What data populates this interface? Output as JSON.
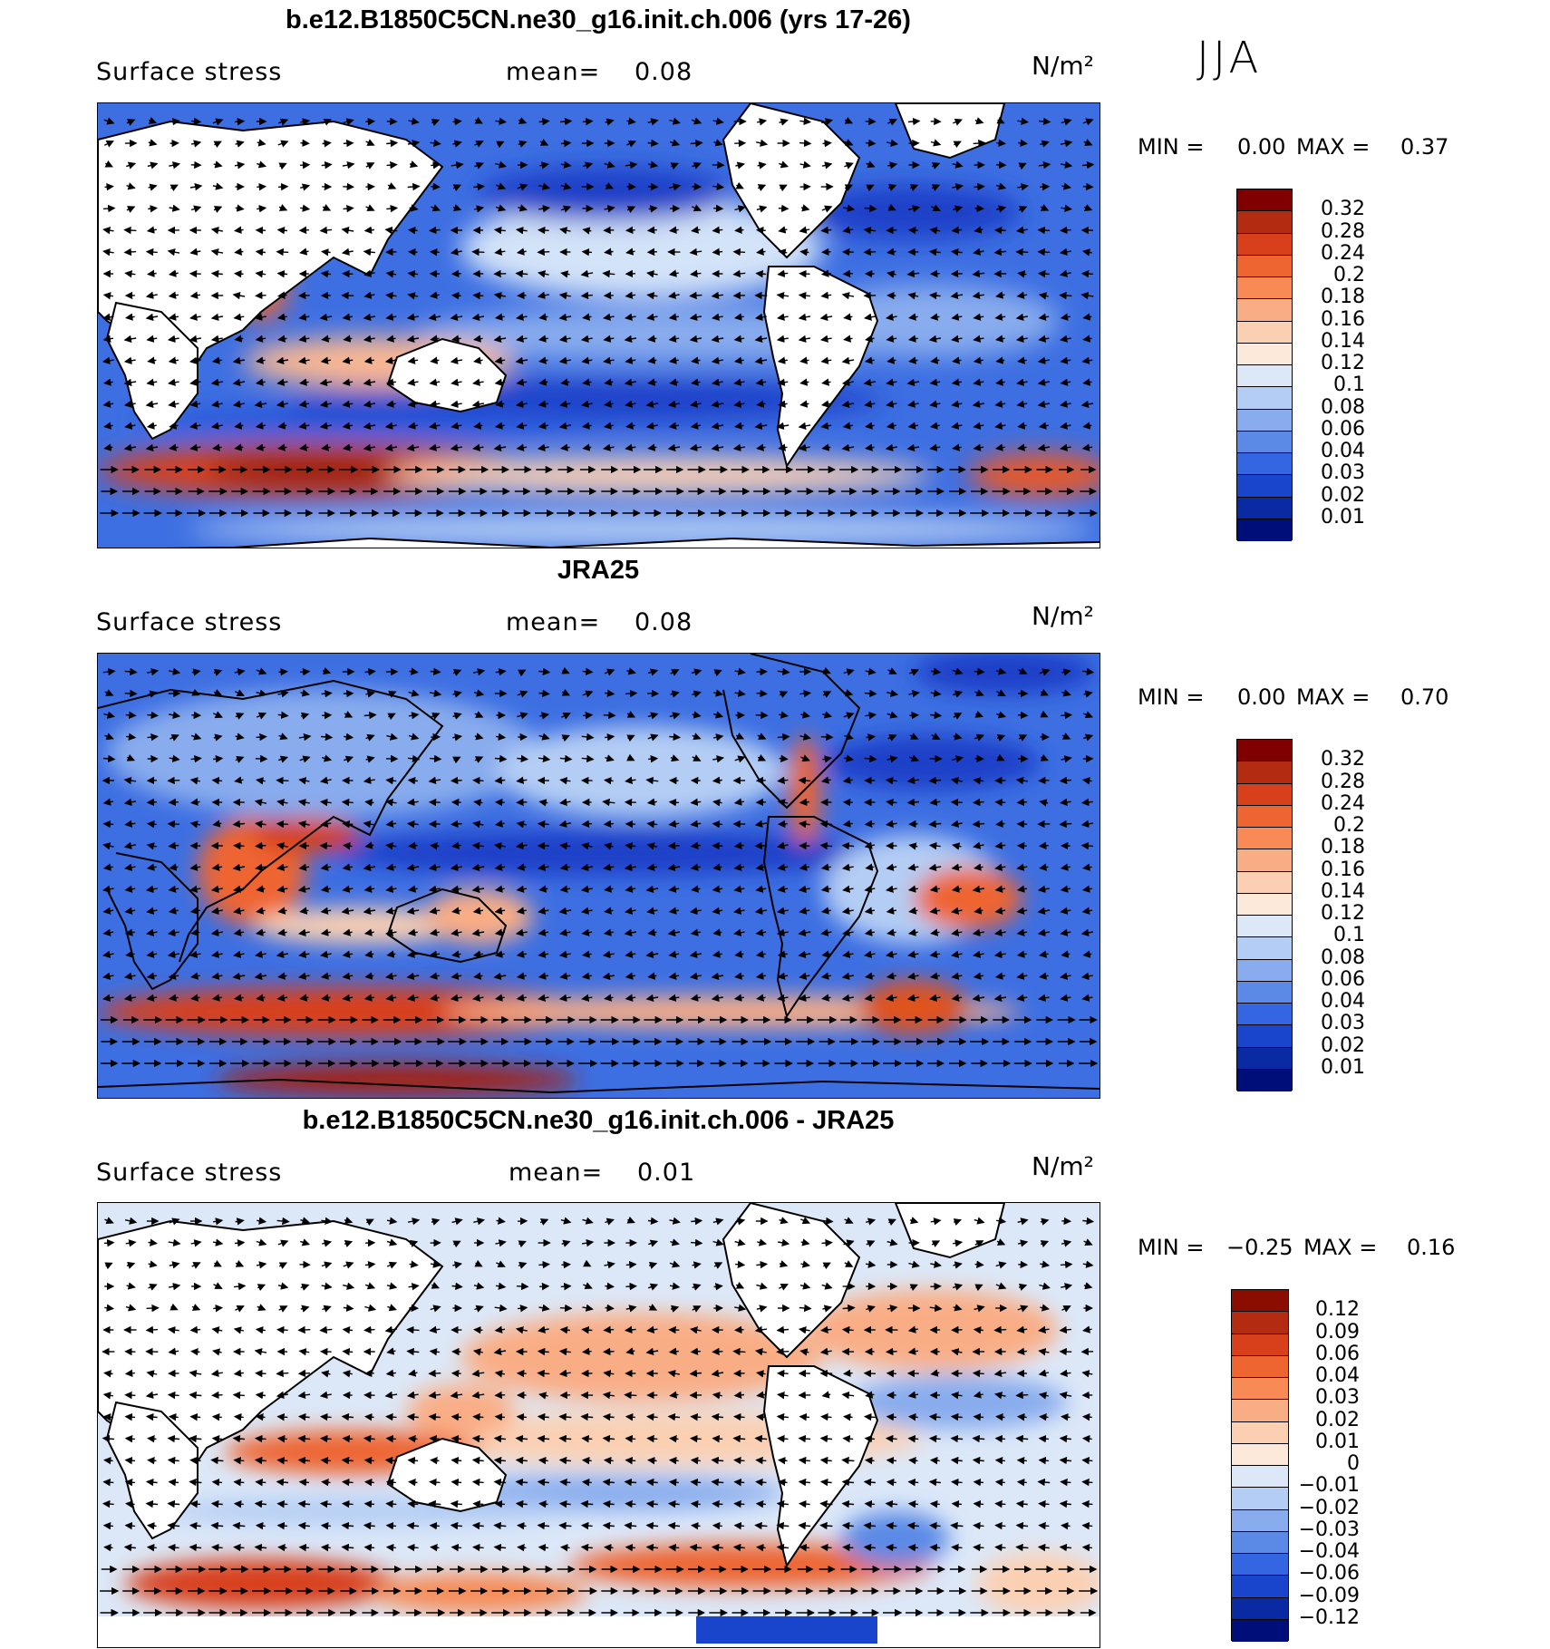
{
  "season": "JJA",
  "panels": [
    {
      "title": "b.e12.B1850C5CN.ne30_g16.init.ch.006 (yrs 17-26)",
      "variable": "Surface stress",
      "mean_label": "mean=",
      "mean_value": "0.08",
      "units": "N/m²",
      "min_label": "MIN =",
      "min_value": "0.00",
      "max_label": "MAX =",
      "max_value": "0.37",
      "colorbar_labels": [
        "0.32",
        "0.28",
        "0.24",
        "0.2",
        "0.18",
        "0.16",
        "0.14",
        "0.12",
        "0.1",
        "0.08",
        "0.06",
        "0.04",
        "0.03",
        "0.02",
        "0.01"
      ],
      "colorbar_colors": [
        "#800000",
        "#b32b10",
        "#d8401b",
        "#ee6532",
        "#f78a55",
        "#f9ad85",
        "#fbd0b2",
        "#fce9d9",
        "#dce8f8",
        "#b4cdf4",
        "#88aced",
        "#5a8ae6",
        "#3366e0",
        "#1944cc",
        "#0a2aa4",
        "#000e7a"
      ]
    },
    {
      "title": "JRA25",
      "variable": "Surface stress",
      "mean_label": "mean=",
      "mean_value": "0.08",
      "units": "N/m²",
      "min_label": "MIN =",
      "min_value": "0.00",
      "max_label": "MAX =",
      "max_value": "0.70",
      "colorbar_labels": [
        "0.32",
        "0.28",
        "0.24",
        "0.2",
        "0.18",
        "0.16",
        "0.14",
        "0.12",
        "0.1",
        "0.08",
        "0.06",
        "0.04",
        "0.03",
        "0.02",
        "0.01"
      ],
      "colorbar_colors": [
        "#800000",
        "#b32b10",
        "#d8401b",
        "#ee6532",
        "#f78a55",
        "#f9ad85",
        "#fbd0b2",
        "#fce9d9",
        "#dce8f8",
        "#b4cdf4",
        "#88aced",
        "#5a8ae6",
        "#3366e0",
        "#1944cc",
        "#0a2aa4",
        "#000e7a"
      ]
    },
    {
      "title": "b.e12.B1850C5CN.ne30_g16.init.ch.006 - JRA25",
      "variable": "Surface stress",
      "mean_label": "mean=",
      "mean_value": "0.01",
      "units": "N/m²",
      "min_label": "MIN =",
      "min_value": "−0.25",
      "max_label": "MAX =",
      "max_value": "0.16",
      "colorbar_labels": [
        "0.12",
        "0.09",
        "0.06",
        "0.04",
        "0.03",
        "0.02",
        "0.01",
        "0",
        "−0.01",
        "−0.02",
        "−0.03",
        "−0.04",
        "−0.06",
        "−0.09",
        "−0.12"
      ],
      "colorbar_colors": [
        "#8b0d00",
        "#b32b10",
        "#d8401b",
        "#ee6532",
        "#f78a55",
        "#f9ad85",
        "#fbd0b2",
        "#fce9d9",
        "#dce8f8",
        "#b4cdf4",
        "#88aced",
        "#5a8ae6",
        "#3366e0",
        "#1944cc",
        "#0a2aa4",
        "#000e7a"
      ]
    }
  ]
}
